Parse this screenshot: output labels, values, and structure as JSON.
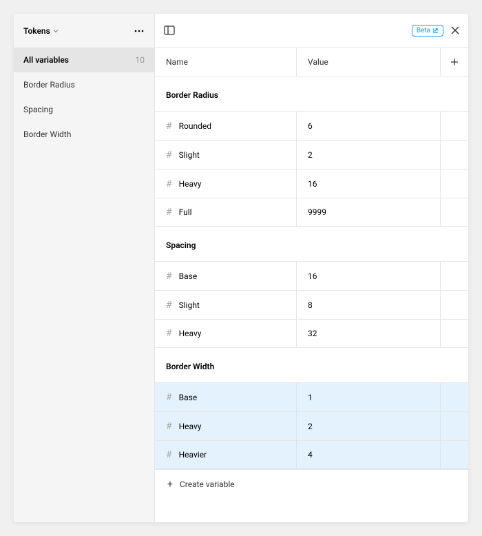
{
  "sidebar": {
    "collection_name": "Tokens",
    "items": [
      {
        "label": "All variables",
        "count": "10",
        "active": true
      },
      {
        "label": "Border Radius",
        "count": "",
        "active": false
      },
      {
        "label": "Spacing",
        "count": "",
        "active": false
      },
      {
        "label": "Border Width",
        "count": "",
        "active": false
      }
    ]
  },
  "header": {
    "beta_label": "Beta"
  },
  "columns": {
    "name": "Name",
    "value": "Value"
  },
  "groups": [
    {
      "title": "Border Radius",
      "selected": false,
      "rows": [
        {
          "name": "Rounded",
          "value": "6"
        },
        {
          "name": "Slight",
          "value": "2"
        },
        {
          "name": "Heavy",
          "value": "16"
        },
        {
          "name": "Full",
          "value": "9999"
        }
      ]
    },
    {
      "title": "Spacing",
      "selected": false,
      "rows": [
        {
          "name": "Base",
          "value": "16"
        },
        {
          "name": "Slight",
          "value": "8"
        },
        {
          "name": "Heavy",
          "value": "32"
        }
      ]
    },
    {
      "title": "Border Width",
      "selected": true,
      "rows": [
        {
          "name": "Base",
          "value": "1"
        },
        {
          "name": "Heavy",
          "value": "2"
        },
        {
          "name": "Heavier",
          "value": "4"
        }
      ]
    }
  ],
  "create_label": "Create variable",
  "colors": {
    "background": "#f0f0f0",
    "sidebar_bg": "#f5f5f5",
    "border": "#e6e6e6",
    "active_item_bg": "#e5e5e5",
    "selected_row_bg": "#e3f2fd",
    "accent": "#0d99ff",
    "text": "#333333",
    "muted": "#999999"
  }
}
